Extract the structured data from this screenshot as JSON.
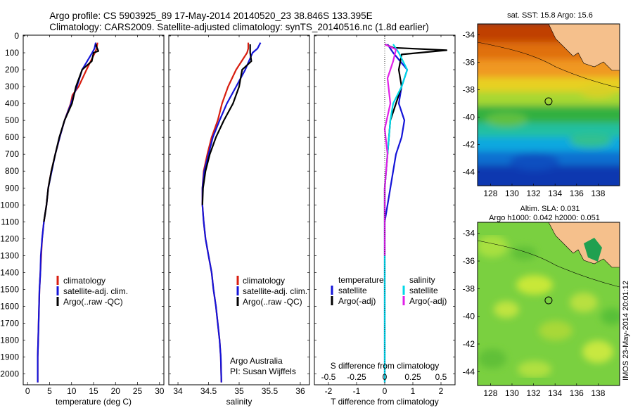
{
  "title": {
    "line1": "Argo profile: CS 5903925_89 17-May-2014 20140520_23 38.846S 133.395E",
    "line2": "Climatology: CARS2009. Satellite-adjusted climatology: synTS_20140516.nc (1.8d earlier)"
  },
  "side_label": "IMOS 23-May-2014 20:01:12",
  "colors": {
    "climatology": "#d81e10",
    "satellite": "#1414d8",
    "argo": "#000000",
    "sal_satellite": "#00d8e8",
    "sal_argo": "#e020e8",
    "land": "#f5c08c"
  },
  "chart_data": [
    {
      "type": "line",
      "name": "temperature",
      "xlabel": "temperature (deg C)",
      "ylabel": "",
      "xlim": [
        -1,
        31
      ],
      "ylim": [
        2060,
        0
      ],
      "xticks": [
        0,
        5,
        10,
        15,
        20,
        25,
        30
      ],
      "yticks": [
        0,
        100,
        200,
        300,
        400,
        500,
        600,
        700,
        800,
        900,
        1000,
        1100,
        1200,
        1300,
        1400,
        1500,
        1600,
        1700,
        1800,
        1900,
        2000
      ],
      "legend": [
        "climatology",
        "satellite-adj. clim.",
        "Argo(..raw -QC)"
      ],
      "series": [
        {
          "name": "climatology",
          "color": "#d81e10",
          "x": [
            15.9,
            15.7,
            15.3,
            13.4,
            11.6,
            10.2,
            9.8,
            8.4,
            7.3,
            6.3,
            5.4,
            4.7,
            4.3,
            3.7,
            3.3,
            3.1,
            2.9,
            2.7,
            2.6,
            2.5,
            2.4,
            2.3,
            2.3
          ],
          "y": [
            40,
            75,
            100,
            200,
            300,
            350,
            400,
            500,
            600,
            700,
            800,
            900,
            1000,
            1100,
            1200,
            1300,
            1400,
            1500,
            1600,
            1700,
            1800,
            1900,
            2050
          ]
        },
        {
          "name": "satellite-adj. clim.",
          "color": "#1414d8",
          "x": [
            15.5,
            15.2,
            14.7,
            12.4,
            11.2,
            10.5,
            9.9,
            8.4,
            7.3,
            6.3,
            5.5,
            4.7,
            4.3,
            3.7,
            3.3,
            3.0,
            2.9,
            2.7,
            2.6,
            2.5,
            2.4,
            2.3,
            2.3
          ],
          "y": [
            40,
            75,
            100,
            200,
            300,
            350,
            400,
            500,
            600,
            700,
            800,
            900,
            1000,
            1100,
            1200,
            1300,
            1400,
            1500,
            1600,
            1700,
            1800,
            1900,
            2050
          ]
        },
        {
          "name": "Argo(..raw -QC)",
          "color": "#000000",
          "x": [
            15.6,
            15.6,
            16.1,
            15.0,
            14.6,
            12.4,
            11.0,
            10.1,
            8.4,
            7.2,
            6.3,
            5.4,
            4.7,
            4.3,
            3.7
          ],
          "y": [
            50,
            60,
            90,
            100,
            150,
            200,
            300,
            400,
            500,
            600,
            700,
            800,
            900,
            1000,
            1100
          ]
        }
      ]
    },
    {
      "type": "line",
      "name": "salinity",
      "xlabel": "salinity",
      "xlim": [
        33.85,
        36.15
      ],
      "ylim": [
        2060,
        0
      ],
      "xticks": [
        34,
        34.5,
        35,
        35.5,
        36
      ],
      "legend": [
        "climatology",
        "satellite-adj. clim.",
        "Argo(..raw -QC)"
      ],
      "series": [
        {
          "name": "climatology",
          "color": "#d81e10",
          "x": [
            35.15,
            35.15,
            35.13,
            34.95,
            34.82,
            34.72,
            34.65,
            34.55,
            34.48,
            34.42,
            34.4,
            34.4,
            34.42,
            34.45,
            34.5,
            34.55,
            34.58,
            34.62,
            34.65,
            34.68,
            34.7,
            34.71
          ],
          "y": [
            40,
            75,
            100,
            200,
            300,
            400,
            500,
            600,
            700,
            800,
            900,
            1000,
            1100,
            1200,
            1300,
            1400,
            1500,
            1600,
            1700,
            1800,
            1900,
            2050
          ]
        },
        {
          "name": "satellite-adj. clim.",
          "color": "#1414d8",
          "x": [
            35.35,
            35.3,
            35.22,
            35.1,
            34.95,
            34.8,
            34.68,
            34.57,
            34.5,
            34.43,
            34.4,
            34.4,
            34.42,
            34.45,
            34.5,
            34.55,
            34.58,
            34.62,
            34.65,
            34.68,
            34.7,
            34.71
          ],
          "y": [
            40,
            75,
            100,
            200,
            300,
            400,
            500,
            600,
            700,
            800,
            900,
            1000,
            1100,
            1200,
            1300,
            1400,
            1500,
            1600,
            1700,
            1800,
            1900,
            2050
          ]
        },
        {
          "name": "Argo(..raw -QC)",
          "color": "#000000",
          "x": [
            35.18,
            35.18,
            35.18,
            35.2,
            35.05,
            35.0,
            34.9,
            34.75,
            34.62,
            34.52,
            34.45,
            34.41,
            34.4
          ],
          "y": [
            50,
            75,
            100,
            150,
            200,
            300,
            400,
            500,
            600,
            700,
            800,
            900,
            1000
          ]
        }
      ],
      "annotations": [
        "Argo Australia",
        "PI: Susan Wijffels"
      ]
    },
    {
      "type": "line",
      "name": "difference",
      "xlabel": "T difference from climatology",
      "xlabel_top": "S difference from climatology",
      "xlim": [
        -2.5,
        2.5
      ],
      "ylim": [
        2060,
        0
      ],
      "xticks": [
        -2,
        -1,
        0,
        1,
        2
      ],
      "xticks_top": [
        "-0.5",
        "-0.25",
        "0",
        "0.25",
        "0.5"
      ],
      "legend_groups": [
        "temperature",
        "salinity"
      ],
      "legend": [
        "satellite",
        "Argo(-adj)",
        "satellite",
        "Argo(-adj)"
      ],
      "series": [
        {
          "name": "satellite",
          "group": "temperature",
          "color": "#1414d8",
          "x": [
            0.1,
            0.3,
            0.8,
            0.6,
            0.5,
            0.7,
            0.6,
            0.4,
            0.3,
            0.2,
            0.1,
            0.0,
            0.0,
            0.0,
            0.0,
            0.0,
            0.0,
            0.0
          ],
          "y": [
            50,
            100,
            200,
            300,
            400,
            500,
            600,
            700,
            800,
            900,
            1000,
            1100,
            1200,
            1300,
            1500,
            1700,
            1900,
            2050
          ]
        },
        {
          "name": "Argo(-adj)",
          "group": "temperature",
          "color": "#000000",
          "x": [
            0.0,
            0.3,
            2.2,
            0.6,
            0.5,
            0.6,
            0.4,
            0.2,
            0.1,
            0.0,
            0.0
          ],
          "y": [
            50,
            70,
            85,
            110,
            200,
            300,
            400,
            500,
            700,
            900,
            1100
          ]
        },
        {
          "name": "satellite",
          "group": "salinity",
          "color": "#00d8e8",
          "x": [
            0.3,
            0.5,
            0.8,
            0.6,
            0.3,
            0.2,
            0.1,
            0.0,
            0.0,
            0.0,
            0.0,
            0.0,
            0.0
          ],
          "y": [
            50,
            100,
            200,
            300,
            400,
            500,
            700,
            900,
            1100,
            1300,
            1500,
            1800,
            2050
          ]
        },
        {
          "name": "Argo(-adj)",
          "group": "salinity",
          "color": "#e020e8",
          "x": [
            0.0,
            0.4,
            0.3,
            0.1,
            0.2,
            0.0,
            0.1,
            0.0,
            0.0,
            0.0
          ],
          "y": [
            50,
            80,
            150,
            250,
            400,
            550,
            700,
            900,
            1100,
            1300
          ]
        }
      ]
    },
    {
      "type": "heatmap",
      "name": "sst-map",
      "title": "sat. SST: 15.8 Argo: 15.6",
      "xticks": [
        128,
        130,
        132,
        134,
        136,
        138
      ],
      "yticks": [
        -34,
        -36,
        -38,
        -40,
        -42,
        -44
      ],
      "xlim": [
        126.8,
        140.0
      ],
      "ylim": [
        -45.0,
        -33.2
      ],
      "argo_position": {
        "lon": 133.395,
        "lat": -38.846
      }
    },
    {
      "type": "heatmap",
      "name": "sla-map",
      "title": "Altim. SLA: 0.031",
      "subtitle": "Argo h1000: 0.042 h2000: 0.051",
      "xticks": [
        128,
        130,
        132,
        134,
        136,
        138
      ],
      "yticks": [
        -34,
        -36,
        -38,
        -40,
        -42,
        -44
      ],
      "xlim": [
        126.8,
        140.0
      ],
      "ylim": [
        -45.0,
        -33.2
      ],
      "argo_position": {
        "lon": 133.395,
        "lat": -38.846
      }
    }
  ]
}
